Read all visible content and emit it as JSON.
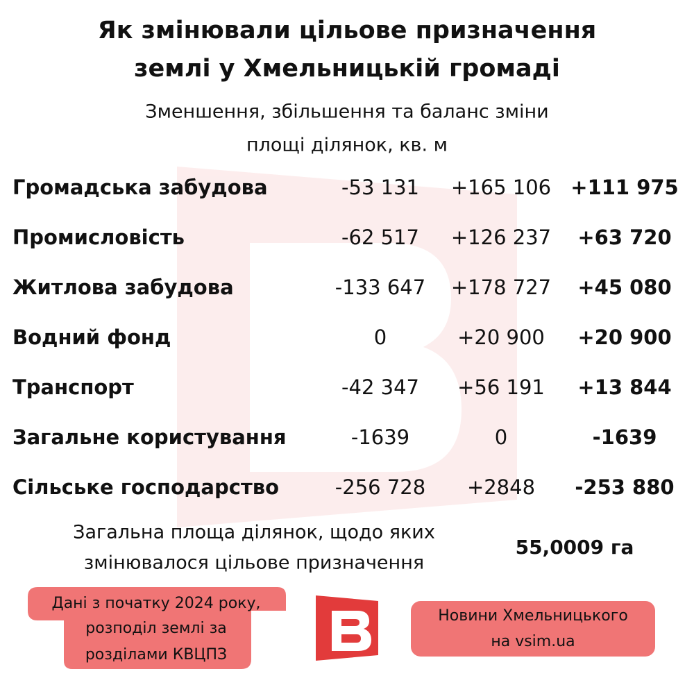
{
  "header": {
    "title": [
      "Як змінювали цільове призначення",
      "землі у Хмельницькій громаді"
    ],
    "subtitle": [
      "Зменшення, збільшення та баланс зміни",
      "площі ділянок, кв. м"
    ]
  },
  "table": {
    "rows": [
      [
        "Громадська забудова",
        "-53 131",
        "+165 106",
        "+111 975"
      ],
      [
        "Промисловість",
        "-62 517",
        "+126 237",
        "+63 720"
      ],
      [
        "Житлова забудова",
        "-133 647",
        "+178 727",
        "+45 080"
      ],
      [
        "Водний фонд",
        "0",
        "+20 900",
        "+20 900"
      ],
      [
        "Транспорт",
        "-42 347",
        "+56 191",
        "+13 844"
      ],
      [
        "Загальне користування",
        "-1639",
        "0",
        "-1639"
      ],
      [
        "Сільське господарство",
        "-256 728",
        "+2848",
        "-253 880"
      ]
    ]
  },
  "total": {
    "label": [
      "Загальна площа ділянок, щодо яких",
      "змінювалося цільове призначення"
    ],
    "value": "55,0009 га"
  },
  "footer": {
    "note": [
      "Дані з початку 2024 року,",
      "розподіл землі за",
      "розділами КВЦПЗ"
    ],
    "source": [
      "Новини Хмельницького",
      "на vsim.ua"
    ]
  }
}
